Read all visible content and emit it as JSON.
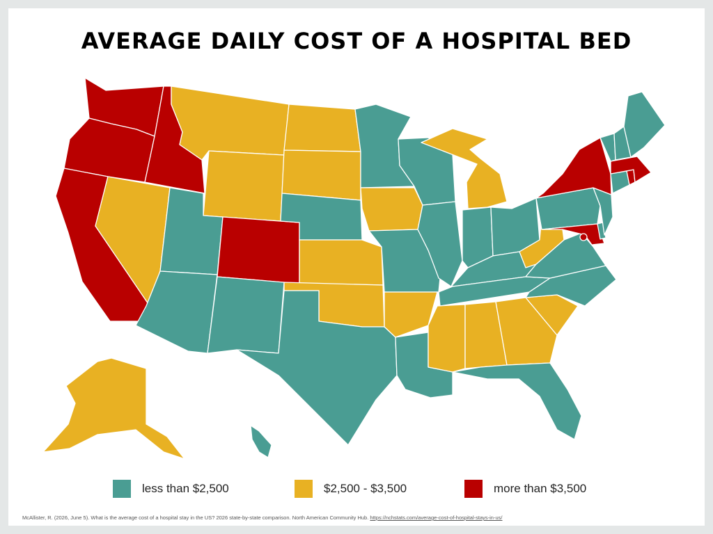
{
  "title": "AVERAGE DAILY COST OF A HOSPITAL BED",
  "colors": {
    "low": "#4a9d93",
    "mid": "#e8b123",
    "high": "#b90000",
    "background": "#e4e7e7",
    "card": "#ffffff"
  },
  "legend": {
    "low": "less than $2,500",
    "mid": "$2,500 - $3,500",
    "high": "more than $3,500"
  },
  "source": {
    "text": "McAllister, R. (2026, June 5). What is the average cost of a hospital stay in the US? 2026 state-by-state comparison. North American Community Hub.",
    "link": "https://nchstats.com/average-cost-of-hospital-stays-in-us/"
  },
  "states": {
    "WA": "high",
    "OR": "high",
    "CA": "high",
    "ID": "high",
    "CO": "high",
    "NY": "high",
    "MA": "high",
    "MD": "high",
    "DC": "high",
    "RI": "high",
    "MT": "mid",
    "WY": "mid",
    "ND": "mid",
    "SD": "mid",
    "NV": "mid",
    "KS": "mid",
    "OK": "mid",
    "IA": "mid",
    "AR": "mid",
    "MI": "mid",
    "MS": "mid",
    "AL": "mid",
    "GA": "mid",
    "SC": "mid",
    "WV": "mid",
    "AK": "mid",
    "UT": "low",
    "AZ": "low",
    "NM": "low",
    "TX": "low",
    "NE": "low",
    "MN": "low",
    "WI": "low",
    "IL": "low",
    "IN": "low",
    "OH": "low",
    "KY": "low",
    "TN": "low",
    "MO": "low",
    "LA": "low",
    "FL": "low",
    "NC": "low",
    "VA": "low",
    "PA": "low",
    "NJ": "low",
    "DE": "low",
    "CT": "low",
    "VT": "low",
    "NH": "low",
    "ME": "low",
    "HI": "low"
  }
}
